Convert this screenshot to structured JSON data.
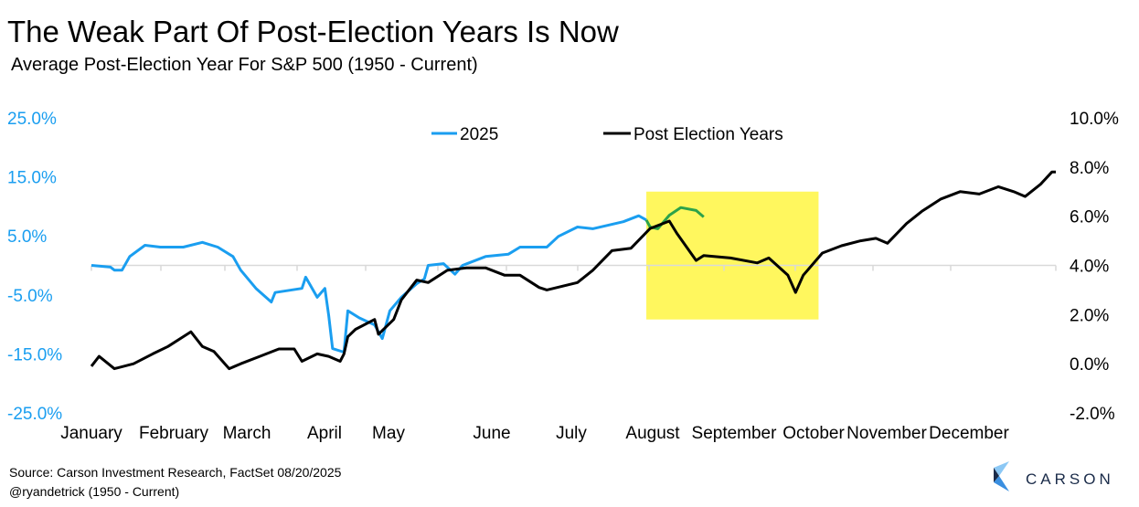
{
  "title": "The Weak Part Of Post-Election Years Is Now",
  "subtitle": "Average Post-Election Year For S&P 500 (1950 - Current)",
  "source": "Source: Carson Investment Research, FactSet 08/20/2025",
  "credit": "@ryandetrick      (1950 - Current)",
  "logo": {
    "text": "CARSON",
    "colors": [
      "#1a2b49",
      "#3a8fe0",
      "#8cc8f5"
    ]
  },
  "chart_data": {
    "type": "line",
    "title": "The Weak Part Of Post-Election Years Is Now",
    "subtitle": "Average Post-Election Year For S&P 500 (1950 - Current)",
    "x_unit": "trading day of year",
    "x_ticks": [
      "January",
      "February",
      "March",
      "April",
      "May",
      "June",
      "July",
      "August",
      "September",
      "October",
      "November",
      "December"
    ],
    "left_axis": {
      "ticks": [
        "25.0%",
        "15.0%",
        "5.0%",
        "-5.0%",
        "-15.0%",
        "-25.0%"
      ],
      "range": [
        -25,
        25
      ],
      "color": "#1a9ef0"
    },
    "right_axis": {
      "ticks": [
        "10.0%",
        "8.0%",
        "6.0%",
        "4.0%",
        "2.0%",
        "0.0%",
        "-2.0%"
      ],
      "range": [
        -2,
        10
      ],
      "color": "#000000"
    },
    "legend": {
      "placement": "top-center",
      "entries": [
        "2025",
        "Post Election Years"
      ]
    },
    "grid": false,
    "series": [
      {
        "name": "2025",
        "axis": "left",
        "color": "#1a9ef0",
        "points": [
          [
            0,
            0.0
          ],
          [
            5,
            -0.3
          ],
          [
            6,
            -0.8
          ],
          [
            8,
            -0.8
          ],
          [
            10,
            1.5
          ],
          [
            14,
            3.4
          ],
          [
            18,
            3.1
          ],
          [
            24,
            3.1
          ],
          [
            29,
            3.9
          ],
          [
            33,
            3.1
          ],
          [
            37,
            1.5
          ],
          [
            39,
            -0.8
          ],
          [
            43,
            -3.9
          ],
          [
            47,
            -6.2
          ],
          [
            48,
            -4.6
          ],
          [
            55,
            -3.9
          ],
          [
            56,
            -2.0
          ],
          [
            59,
            -5.4
          ],
          [
            61,
            -3.9
          ],
          [
            62,
            -8.5
          ],
          [
            63,
            -14.1
          ],
          [
            66,
            -14.7
          ],
          [
            67,
            -7.7
          ],
          [
            70,
            -8.9
          ],
          [
            74,
            -10.1
          ],
          [
            76,
            -12.4
          ],
          [
            78,
            -7.7
          ],
          [
            81,
            -5.4
          ],
          [
            85,
            -3.1
          ],
          [
            87,
            -2.3
          ],
          [
            88,
            0.0
          ],
          [
            92,
            0.3
          ],
          [
            95,
            -1.5
          ],
          [
            97,
            0.0
          ],
          [
            103,
            1.5
          ],
          [
            109,
            1.9
          ],
          [
            112,
            3.1
          ],
          [
            119,
            3.1
          ],
          [
            122,
            4.9
          ],
          [
            127,
            6.5
          ],
          [
            131,
            6.2
          ],
          [
            139,
            7.4
          ],
          [
            143,
            8.4
          ],
          [
            145,
            7.7
          ]
        ]
      },
      {
        "axis": "left",
        "color": "#2ca24a",
        "points": [
          [
            145,
            7.7
          ],
          [
            146,
            6.5
          ],
          [
            148,
            6.2
          ],
          [
            151,
            8.5
          ],
          [
            154,
            9.8
          ],
          [
            158,
            9.3
          ],
          [
            160,
            8.2
          ]
        ]
      },
      {
        "name": "Post Election Years",
        "axis": "right",
        "color": "#000000",
        "points": [
          [
            0,
            -0.1
          ],
          [
            2,
            0.3
          ],
          [
            6,
            -0.2
          ],
          [
            11,
            0.0
          ],
          [
            16,
            0.4
          ],
          [
            20,
            0.7
          ],
          [
            25,
            1.2
          ],
          [
            26,
            1.3
          ],
          [
            29,
            0.7
          ],
          [
            32,
            0.5
          ],
          [
            36,
            -0.2
          ],
          [
            39,
            0.0
          ],
          [
            44,
            0.3
          ],
          [
            49,
            0.6
          ],
          [
            53,
            0.6
          ],
          [
            55,
            0.1
          ],
          [
            59,
            0.4
          ],
          [
            62,
            0.3
          ],
          [
            65,
            0.1
          ],
          [
            66,
            0.4
          ],
          [
            67,
            1.1
          ],
          [
            69,
            1.4
          ],
          [
            74,
            1.8
          ],
          [
            75,
            1.2
          ],
          [
            79,
            1.8
          ],
          [
            81,
            2.6
          ],
          [
            85,
            3.4
          ],
          [
            88,
            3.3
          ],
          [
            93,
            3.8
          ],
          [
            98,
            3.9
          ],
          [
            103,
            3.9
          ],
          [
            108,
            3.6
          ],
          [
            112,
            3.6
          ],
          [
            117,
            3.1
          ],
          [
            119,
            3.0
          ],
          [
            127,
            3.3
          ],
          [
            131,
            3.8
          ],
          [
            136,
            4.6
          ],
          [
            141,
            4.7
          ],
          [
            146,
            5.5
          ],
          [
            151,
            5.8
          ],
          [
            153,
            5.3
          ],
          [
            158,
            4.2
          ],
          [
            160,
            4.4
          ],
          [
            167,
            4.3
          ],
          [
            174,
            4.1
          ],
          [
            177,
            4.3
          ],
          [
            182,
            3.6
          ],
          [
            184,
            2.9
          ],
          [
            186,
            3.6
          ],
          [
            191,
            4.5
          ],
          [
            196,
            4.8
          ],
          [
            201,
            5.0
          ],
          [
            205,
            5.1
          ],
          [
            208,
            4.9
          ],
          [
            213,
            5.7
          ],
          [
            217,
            6.2
          ],
          [
            222,
            6.7
          ],
          [
            227,
            7.0
          ],
          [
            232,
            6.9
          ],
          [
            237,
            7.2
          ],
          [
            241,
            7.0
          ],
          [
            244,
            6.8
          ],
          [
            248,
            7.3
          ],
          [
            251,
            7.8
          ],
          [
            252,
            7.8
          ]
        ]
      }
    ],
    "highlight": {
      "x_range": [
        145,
        190
      ],
      "right_axis_range": [
        1.8,
        7.0
      ],
      "color": "#fff75e"
    }
  }
}
